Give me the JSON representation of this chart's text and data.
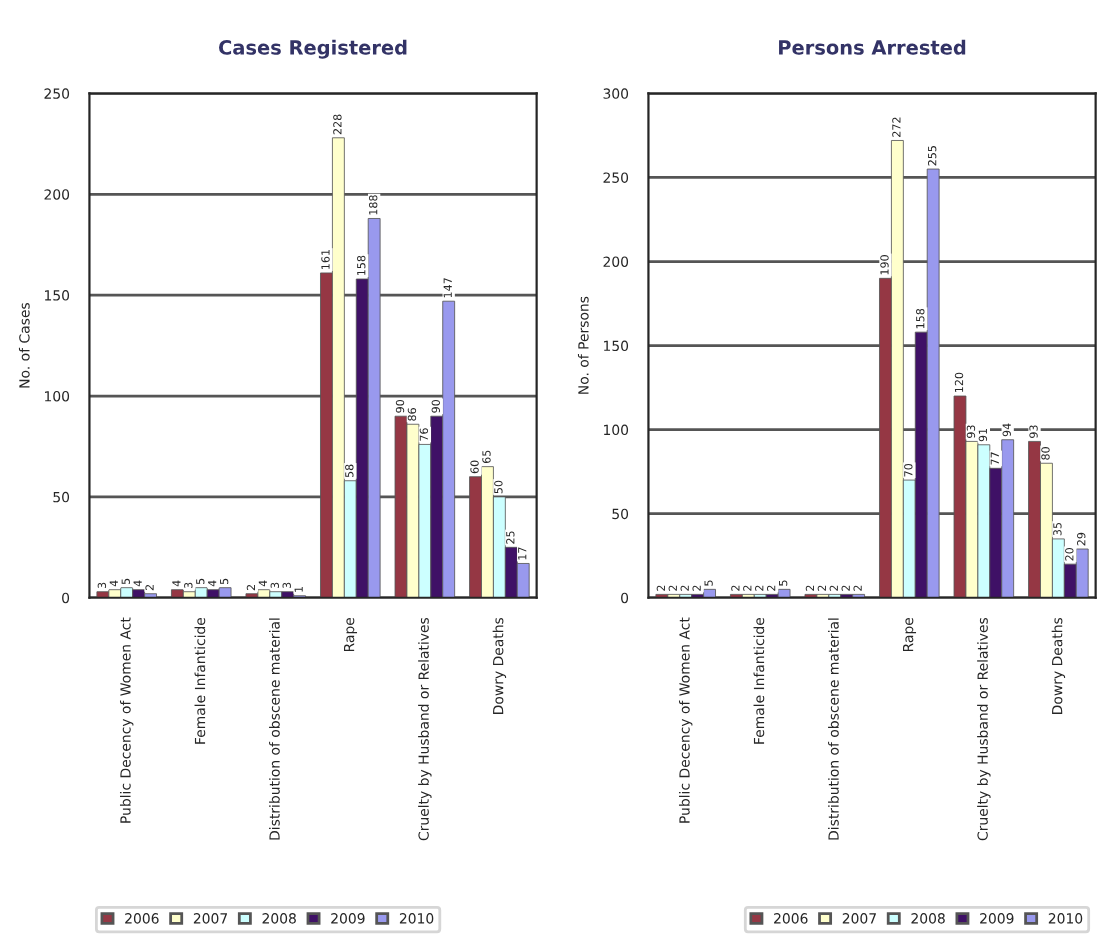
{
  "chart_data": [
    {
      "type": "bar",
      "title": "Cases Registered",
      "ylabel": "No. of Cases",
      "categories": [
        "Public Decency of Women Act",
        "Female Infanticide",
        "Distribution of obscene material",
        "Rape",
        "Cruelty by Husband or Relatives",
        "Dowry Deaths"
      ],
      "series": [
        {
          "name": "2006",
          "color": "#953744",
          "values": [
            3,
            4,
            2,
            161,
            90,
            60
          ]
        },
        {
          "name": "2007",
          "color": "#ffffcc",
          "values": [
            4,
            3,
            4,
            228,
            86,
            65
          ]
        },
        {
          "name": "2008",
          "color": "#ccffff",
          "values": [
            5,
            5,
            3,
            58,
            76,
            50
          ]
        },
        {
          "name": "2009",
          "color": "#3f1166",
          "values": [
            4,
            4,
            3,
            158,
            90,
            25
          ]
        },
        {
          "name": "2010",
          "color": "#9999ee",
          "values": [
            2,
            5,
            1,
            188,
            147,
            17
          ]
        }
      ],
      "ylim": [
        0,
        250
      ],
      "yticks": [
        0,
        50,
        100,
        150,
        200,
        250
      ],
      "grid": "y",
      "legend": "bottom left",
      "data_labels": true
    },
    {
      "type": "bar",
      "title": "Persons Arrested",
      "ylabel": "No. of Persons",
      "categories": [
        "Public Decency of Women Act",
        "Female Infanticide",
        "Distribution of obscene material",
        "Rape",
        "Cruelty by Husband or Relatives",
        "Dowry Deaths"
      ],
      "series": [
        {
          "name": "2006",
          "color": "#953744",
          "values": [
            2,
            2,
            2,
            190,
            120,
            93
          ]
        },
        {
          "name": "2007",
          "color": "#ffffcc",
          "values": [
            2,
            2,
            2,
            272,
            93,
            80
          ]
        },
        {
          "name": "2008",
          "color": "#ccffff",
          "values": [
            2,
            2,
            2,
            70,
            91,
            35
          ]
        },
        {
          "name": "2009",
          "color": "#3f1166",
          "values": [
            2,
            2,
            2,
            158,
            77,
            20
          ]
        },
        {
          "name": "2010",
          "color": "#9999ee",
          "values": [
            5,
            5,
            2,
            255,
            94,
            29
          ]
        }
      ],
      "ylim": [
        0,
        300
      ],
      "yticks": [
        0,
        50,
        100,
        150,
        200,
        250,
        300
      ],
      "grid": "y",
      "legend": "bottom right",
      "data_labels": true
    }
  ]
}
